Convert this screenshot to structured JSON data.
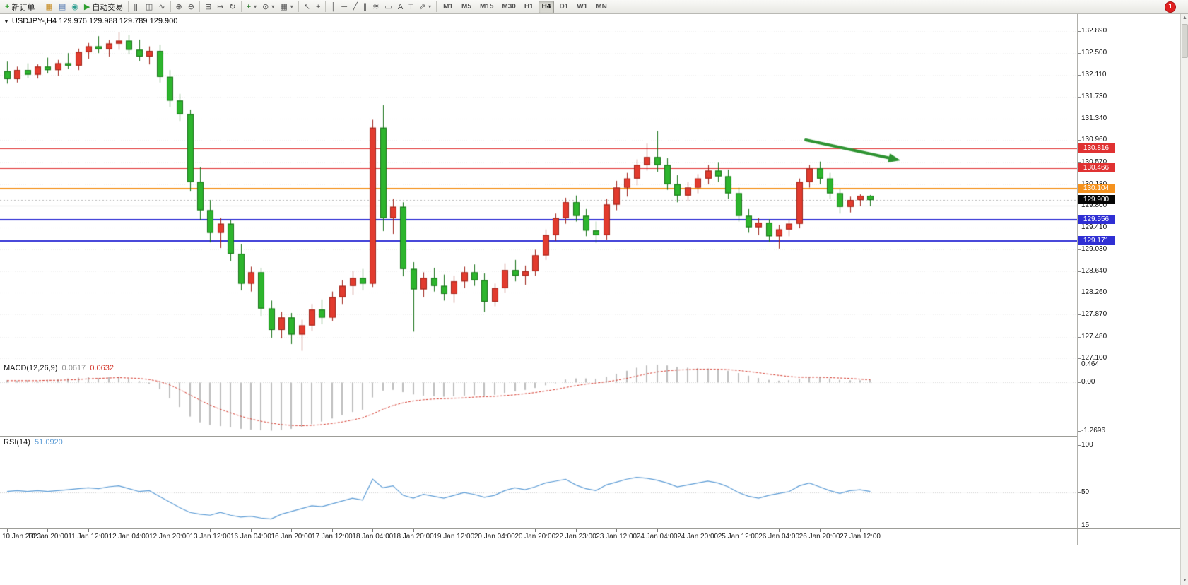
{
  "toolbar": {
    "dropdown_glyph": "▾",
    "groups": [
      {
        "items": [
          {
            "name": "new-order-button",
            "icon": "new-order-icon",
            "glyph": "+",
            "glyph_color": "#2e9e2e",
            "label": "新订单"
          }
        ]
      },
      {
        "items": [
          {
            "name": "charts-button",
            "icon": "charts-icon",
            "glyph": "▦",
            "glyph_color": "#c9922f"
          },
          {
            "name": "profile-button",
            "icon": "profile-icon",
            "glyph": "▤",
            "glyph_color": "#5b7fb5"
          },
          {
            "name": "market-watch-button",
            "icon": "market-watch-icon",
            "glyph": "◉",
            "glyph_color": "#2a9d8f"
          },
          {
            "name": "auto-trading-button",
            "icon": "auto-trading-icon",
            "glyph": "▶",
            "glyph_color": "#2e9e2e",
            "label": "自动交易"
          }
        ]
      },
      {
        "items": [
          {
            "name": "bar-chart-button",
            "icon": "bar-chart-icon",
            "glyph": "|||"
          },
          {
            "name": "candlestick-chart-button",
            "icon": "candlestick-chart-icon",
            "glyph": "◫"
          },
          {
            "name": "line-chart-button",
            "icon": "line-chart-icon",
            "glyph": "∿"
          }
        ]
      },
      {
        "items": [
          {
            "name": "zoom-in-button",
            "icon": "zoom-in-icon",
            "glyph": "⊕"
          },
          {
            "name": "zoom-out-button",
            "icon": "zoom-out-icon",
            "glyph": "⊖"
          }
        ]
      },
      {
        "items": [
          {
            "name": "tile-windows-button",
            "icon": "tile-windows-icon",
            "glyph": "⊞"
          },
          {
            "name": "chart-shift-button",
            "icon": "chart-shift-icon",
            "glyph": "↦"
          },
          {
            "name": "auto-scroll-button",
            "icon": "auto-scroll-icon",
            "glyph": "↻"
          }
        ]
      },
      {
        "items": [
          {
            "name": "indicators-button",
            "icon": "indicators-icon",
            "glyph": "+",
            "glyph_color": "#2e7d32",
            "dropdown": true
          },
          {
            "name": "periods-button",
            "icon": "clock-icon",
            "glyph": "⊙",
            "dropdown": true
          },
          {
            "name": "templates-button",
            "icon": "template-icon",
            "glyph": "▦",
            "dropdown": true
          }
        ]
      },
      {
        "items": [
          {
            "name": "cursor-button",
            "icon": "cursor-icon",
            "glyph": "↖"
          },
          {
            "name": "crosshair-button",
            "icon": "crosshair-icon",
            "glyph": "+"
          }
        ]
      },
      {
        "items": [
          {
            "name": "vertical-line-button",
            "icon": "vertical-line-icon",
            "glyph": "│"
          },
          {
            "name": "horizontal-line-button",
            "icon": "horizontal-line-icon",
            "glyph": "─"
          },
          {
            "name": "trendline-button",
            "icon": "trendline-icon",
            "glyph": "╱"
          },
          {
            "name": "channel-button",
            "icon": "channel-icon",
            "glyph": "∥"
          },
          {
            "name": "fibonacci-button",
            "icon": "fibonacci-icon",
            "glyph": "≋"
          },
          {
            "name": "shapes-button",
            "icon": "shapes-icon",
            "glyph": "▭"
          },
          {
            "name": "text-button",
            "icon": "text-icon",
            "glyph": "A"
          },
          {
            "name": "label-button",
            "icon": "label-icon",
            "glyph": "T"
          },
          {
            "name": "arrows-button",
            "icon": "arrows-icon",
            "glyph": "⇗",
            "dropdown": true
          }
        ]
      }
    ],
    "timeframes": {
      "items": [
        "M1",
        "M5",
        "M15",
        "M30",
        "H1",
        "H4",
        "D1",
        "W1",
        "MN"
      ],
      "active": "H4"
    },
    "notification": {
      "count": "1",
      "color": "#e02020"
    }
  },
  "scrollbar": {
    "up": "▲",
    "down": "▼"
  },
  "chart": {
    "collapse_glyph": "▼",
    "title": "USDJPY-,H4 129.976 129.988 129.789 129.900",
    "symbol": "USDJPY-",
    "timeframe": "H4",
    "current_price": "129.900",
    "price_axis": [
      "132.890",
      "132.500",
      "132.110",
      "131.730",
      "131.340",
      "130.960",
      "130.570",
      "130.180",
      "129.800",
      "129.410",
      "129.030",
      "128.640",
      "128.260",
      "127.870",
      "127.480",
      "127.100"
    ],
    "lines": [
      {
        "price": 130.816,
        "label": "130.816",
        "color": "#e03232",
        "width": 1
      },
      {
        "price": 130.466,
        "label": "130.466",
        "color": "#e03232",
        "width": 1
      },
      {
        "price": 130.104,
        "label": "130.104",
        "color": "#f5921e",
        "width": 2
      },
      {
        "price": 129.8,
        "label": null,
        "color": "#d9d9d9",
        "width": 1
      },
      {
        "price": 129.556,
        "label": "129.556",
        "color": "#2f2fd4",
        "width": 2
      },
      {
        "price": 129.171,
        "label": "129.171",
        "color": "#2f2fd4",
        "width": 2
      }
    ],
    "bid_line_price": 129.9,
    "arrow": {
      "color": "#2e9332"
    },
    "colors": {
      "up": "#e23b2e",
      "up_border": "#9e2218",
      "down": "#2db52d",
      "down_border": "#187218",
      "grid": "#efefef",
      "badge_current_bg": "#050505"
    },
    "candles": [
      [
        132.18,
        132.35,
        131.96,
        132.04
      ],
      [
        132.04,
        132.26,
        131.98,
        132.2
      ],
      [
        132.2,
        132.32,
        132.06,
        132.12
      ],
      [
        132.12,
        132.3,
        132.05,
        132.26
      ],
      [
        132.26,
        132.42,
        132.14,
        132.2
      ],
      [
        132.2,
        132.38,
        132.1,
        132.32
      ],
      [
        132.32,
        132.5,
        132.22,
        132.28
      ],
      [
        132.28,
        132.58,
        132.2,
        132.52
      ],
      [
        132.52,
        132.68,
        132.4,
        132.62
      ],
      [
        132.62,
        132.8,
        132.5,
        132.57
      ],
      [
        132.57,
        132.73,
        132.44,
        132.67
      ],
      [
        132.67,
        132.87,
        132.56,
        132.72
      ],
      [
        132.72,
        132.82,
        132.48,
        132.56
      ],
      [
        132.56,
        132.74,
        132.36,
        132.44
      ],
      [
        132.44,
        132.62,
        132.3,
        132.54
      ],
      [
        132.54,
        132.65,
        131.98,
        132.08
      ],
      [
        132.08,
        132.2,
        131.55,
        131.66
      ],
      [
        131.66,
        131.78,
        131.3,
        131.42
      ],
      [
        131.42,
        131.5,
        130.05,
        130.22
      ],
      [
        130.22,
        130.48,
        129.55,
        129.72
      ],
      [
        129.72,
        129.9,
        129.15,
        129.32
      ],
      [
        129.32,
        129.58,
        129.05,
        129.48
      ],
      [
        129.48,
        129.55,
        128.82,
        128.95
      ],
      [
        128.95,
        129.12,
        128.3,
        128.42
      ],
      [
        128.42,
        128.72,
        128.28,
        128.62
      ],
      [
        128.62,
        128.7,
        127.85,
        127.98
      ],
      [
        127.98,
        128.12,
        127.46,
        127.6
      ],
      [
        127.6,
        127.92,
        127.45,
        127.82
      ],
      [
        127.82,
        127.9,
        127.35,
        127.52
      ],
      [
        127.52,
        127.78,
        127.23,
        127.68
      ],
      [
        127.68,
        128.06,
        127.58,
        127.96
      ],
      [
        127.96,
        128.14,
        127.7,
        127.82
      ],
      [
        127.82,
        128.28,
        127.76,
        128.18
      ],
      [
        128.18,
        128.48,
        128.06,
        128.38
      ],
      [
        128.38,
        128.64,
        128.22,
        128.52
      ],
      [
        128.52,
        128.68,
        128.3,
        128.42
      ],
      [
        128.42,
        131.32,
        128.36,
        131.18
      ],
      [
        131.18,
        131.58,
        129.35,
        129.58
      ],
      [
        129.58,
        129.92,
        129.3,
        129.78
      ],
      [
        129.78,
        129.86,
        128.55,
        128.68
      ],
      [
        128.68,
        128.8,
        127.57,
        128.32
      ],
      [
        128.32,
        128.62,
        128.18,
        128.52
      ],
      [
        128.52,
        128.7,
        128.28,
        128.38
      ],
      [
        128.38,
        128.58,
        128.12,
        128.24
      ],
      [
        128.24,
        128.56,
        128.08,
        128.46
      ],
      [
        128.46,
        128.72,
        128.34,
        128.62
      ],
      [
        128.62,
        128.76,
        128.38,
        128.48
      ],
      [
        128.48,
        128.6,
        127.92,
        128.1
      ],
      [
        128.1,
        128.42,
        128.02,
        128.34
      ],
      [
        128.34,
        128.78,
        128.26,
        128.66
      ],
      [
        128.66,
        128.84,
        128.46,
        128.56
      ],
      [
        128.56,
        128.74,
        128.4,
        128.64
      ],
      [
        128.64,
        129.02,
        128.56,
        128.92
      ],
      [
        128.92,
        129.38,
        128.84,
        129.28
      ],
      [
        129.28,
        129.66,
        129.18,
        129.58
      ],
      [
        129.58,
        129.94,
        129.48,
        129.86
      ],
      [
        129.86,
        129.98,
        129.52,
        129.62
      ],
      [
        129.62,
        129.74,
        129.26,
        129.36
      ],
      [
        129.36,
        129.52,
        129.14,
        129.28
      ],
      [
        129.28,
        129.92,
        129.2,
        129.82
      ],
      [
        129.82,
        130.24,
        129.72,
        130.12
      ],
      [
        130.12,
        130.38,
        129.96,
        130.28
      ],
      [
        130.28,
        130.62,
        130.16,
        130.52
      ],
      [
        130.52,
        130.9,
        130.42,
        130.66
      ],
      [
        130.66,
        131.12,
        130.4,
        130.52
      ],
      [
        130.52,
        130.64,
        130.08,
        130.18
      ],
      [
        130.18,
        130.34,
        129.86,
        129.98
      ],
      [
        129.98,
        130.22,
        129.88,
        130.12
      ],
      [
        130.12,
        130.36,
        130.02,
        130.28
      ],
      [
        130.28,
        130.52,
        130.18,
        130.42
      ],
      [
        130.42,
        130.56,
        130.22,
        130.32
      ],
      [
        130.32,
        130.44,
        129.92,
        130.02
      ],
      [
        130.02,
        130.12,
        129.52,
        129.62
      ],
      [
        129.62,
        129.74,
        129.32,
        129.42
      ],
      [
        129.42,
        129.58,
        129.28,
        129.5
      ],
      [
        129.5,
        129.56,
        129.16,
        129.26
      ],
      [
        129.26,
        129.46,
        129.04,
        129.38
      ],
      [
        129.38,
        129.54,
        129.26,
        129.48
      ],
      [
        129.48,
        130.28,
        129.4,
        130.22
      ],
      [
        130.22,
        130.52,
        130.12,
        130.46
      ],
      [
        130.46,
        130.58,
        130.18,
        130.28
      ],
      [
        130.28,
        130.38,
        129.92,
        130.02
      ],
      [
        130.02,
        130.1,
        129.66,
        129.78
      ],
      [
        129.78,
        129.96,
        129.68,
        129.9
      ],
      [
        129.9,
        130.0,
        129.79,
        129.976
      ],
      [
        129.976,
        129.988,
        129.789,
        129.9
      ]
    ]
  },
  "macd": {
    "name": "MACD(12,26,9)",
    "value_main": "0.0617",
    "value_signal": "0.0632",
    "axis": [
      "0.464",
      "0.00",
      "-1.2696"
    ],
    "colors": {
      "histogram": "#bdbdbd",
      "signal": "#d43a2e"
    },
    "histogram": [
      0.05,
      0.04,
      0.05,
      0.03,
      0.06,
      0.08,
      0.1,
      0.12,
      0.13,
      0.11,
      0.13,
      0.14,
      0.1,
      0.03,
      -0.04,
      -0.18,
      -0.42,
      -0.65,
      -0.9,
      -1.05,
      -1.12,
      -1.15,
      -1.18,
      -1.22,
      -1.24,
      -1.26,
      -1.27,
      -1.25,
      -1.22,
      -1.17,
      -1.1,
      -1.03,
      -0.95,
      -0.86,
      -0.78,
      -0.72,
      -0.4,
      -0.22,
      -0.2,
      -0.26,
      -0.32,
      -0.35,
      -0.37,
      -0.38,
      -0.37,
      -0.35,
      -0.34,
      -0.36,
      -0.33,
      -0.28,
      -0.24,
      -0.2,
      -0.15,
      -0.08,
      -0.01,
      0.07,
      0.1,
      0.1,
      0.09,
      0.14,
      0.22,
      0.3,
      0.38,
      0.44,
      0.46,
      0.44,
      0.4,
      0.38,
      0.37,
      0.36,
      0.34,
      0.3,
      0.24,
      0.17,
      0.11,
      0.06,
      0.04,
      0.05,
      0.09,
      0.13,
      0.13,
      0.1,
      0.06,
      0.05,
      0.05,
      0.0617
    ],
    "signal": [
      0.04,
      0.04,
      0.04,
      0.04,
      0.05,
      0.05,
      0.06,
      0.07,
      0.09,
      0.1,
      0.11,
      0.12,
      0.11,
      0.1,
      0.07,
      0.02,
      -0.07,
      -0.19,
      -0.33,
      -0.47,
      -0.6,
      -0.71,
      -0.8,
      -0.89,
      -0.96,
      -1.02,
      -1.07,
      -1.11,
      -1.13,
      -1.14,
      -1.13,
      -1.11,
      -1.08,
      -1.04,
      -0.99,
      -0.93,
      -0.83,
      -0.71,
      -0.61,
      -0.54,
      -0.49,
      -0.46,
      -0.44,
      -0.43,
      -0.42,
      -0.41,
      -0.39,
      -0.38,
      -0.37,
      -0.35,
      -0.33,
      -0.3,
      -0.27,
      -0.23,
      -0.19,
      -0.14,
      -0.09,
      -0.05,
      -0.02,
      0.01,
      0.05,
      0.1,
      0.16,
      0.22,
      0.27,
      0.3,
      0.32,
      0.33,
      0.34,
      0.34,
      0.34,
      0.33,
      0.31,
      0.28,
      0.25,
      0.21,
      0.18,
      0.15,
      0.13,
      0.13,
      0.13,
      0.12,
      0.11,
      0.1,
      0.08,
      0.0632
    ]
  },
  "rsi": {
    "name": "RSI(14)",
    "value": "51.0920",
    "axis": [
      "100",
      "50",
      "15"
    ],
    "level": 50,
    "color": "#5b9bd5",
    "values": [
      51,
      52,
      51,
      52,
      51,
      52,
      53,
      54,
      55,
      54,
      56,
      57,
      54,
      51,
      52,
      46,
      40,
      34,
      29,
      27,
      26,
      29,
      26,
      24,
      25,
      23,
      22,
      27,
      30,
      33,
      36,
      35,
      38,
      41,
      44,
      42,
      64,
      55,
      57,
      47,
      44,
      48,
      46,
      44,
      47,
      50,
      48,
      45,
      47,
      52,
      55,
      53,
      56,
      60,
      62,
      64,
      58,
      54,
      52,
      58,
      61,
      64,
      66,
      65,
      63,
      60,
      56,
      58,
      60,
      62,
      60,
      56,
      50,
      46,
      44,
      47,
      49,
      51,
      57,
      60,
      56,
      52,
      49,
      52,
      53,
      51.09
    ]
  },
  "time_axis": [
    "10 Jan 2023",
    "10 Jan 20:00",
    "11 Jan 12:00",
    "12 Jan 04:00",
    "12 Jan 20:00",
    "13 Jan 12:00",
    "16 Jan 04:00",
    "16 Jan 20:00",
    "17 Jan 12:00",
    "18 Jan 04:00",
    "18 Jan 20:00",
    "19 Jan 12:00",
    "20 Jan 04:00",
    "20 Jan 20:00",
    "22 Jan 23:00",
    "23 Jan 12:00",
    "24 Jan 04:00",
    "24 Jan 20:00",
    "25 Jan 12:00",
    "26 Jan 04:00",
    "26 Jan 20:00",
    "27 Jan 12:00"
  ]
}
